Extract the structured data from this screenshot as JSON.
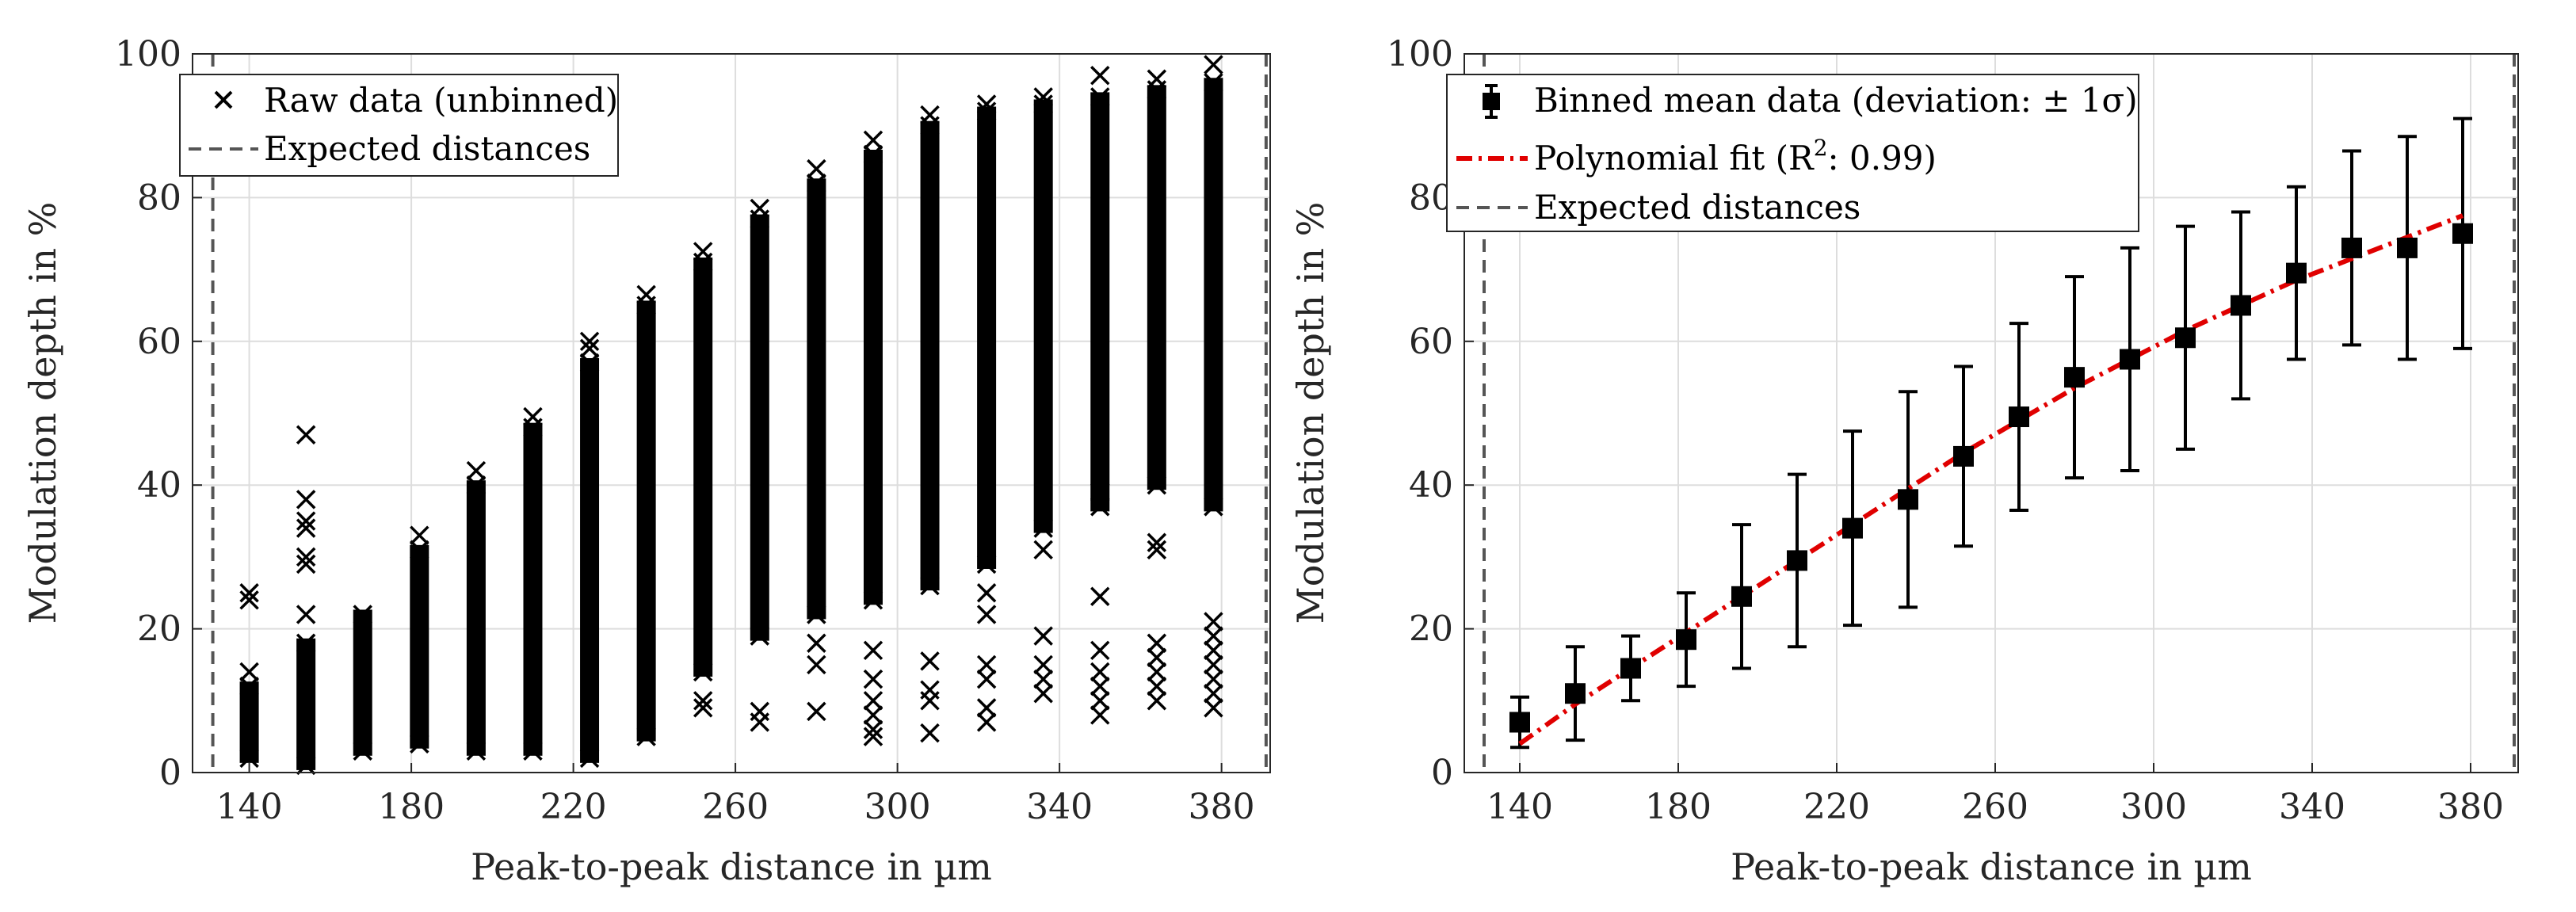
{
  "chart_data": [
    {
      "type": "scatter",
      "title": "",
      "xlabel": "Peak-to-peak distance in µm",
      "ylabel": "Modulation depth in %",
      "xlim": [
        126,
        392
      ],
      "ylim": [
        0,
        100
      ],
      "xticks": [
        140,
        180,
        220,
        260,
        300,
        340,
        380
      ],
      "yticks": [
        0,
        20,
        40,
        60,
        80,
        100
      ],
      "grid": true,
      "legend": {
        "placement": "top-left",
        "entries": [
          "Raw data (unbinned)",
          "Expected distances"
        ]
      },
      "raw_columns": [
        {
          "x": 140,
          "low": 2,
          "high": 12,
          "outliers": [
            14,
            24,
            25
          ]
        },
        {
          "x": 154,
          "low": 1,
          "high": 18,
          "outliers": [
            22,
            29,
            30,
            34,
            35,
            38,
            47
          ]
        },
        {
          "x": 168,
          "low": 3,
          "high": 22,
          "outliers": []
        },
        {
          "x": 182,
          "low": 4,
          "high": 31,
          "outliers": [
            33
          ]
        },
        {
          "x": 196,
          "low": 3,
          "high": 40,
          "outliers": [
            42
          ]
        },
        {
          "x": 210,
          "low": 3,
          "high": 48,
          "outliers": [
            49.5
          ]
        },
        {
          "x": 224,
          "low": 2,
          "high": 57,
          "outliers": [
            59,
            60
          ]
        },
        {
          "x": 238,
          "low": 5,
          "high": 65,
          "outliers": [
            66.5
          ]
        },
        {
          "x": 252,
          "low": 14,
          "high": 71,
          "outliers": [
            9,
            10,
            72.5
          ]
        },
        {
          "x": 266,
          "low": 19,
          "high": 77,
          "outliers": [
            7,
            8.5,
            78.5
          ]
        },
        {
          "x": 280,
          "low": 22,
          "high": 82,
          "outliers": [
            8.5,
            15,
            18,
            84
          ]
        },
        {
          "x": 294,
          "low": 24,
          "high": 86,
          "outliers": [
            5,
            6,
            8,
            10,
            13,
            17,
            88
          ]
        },
        {
          "x": 308,
          "low": 26,
          "high": 90,
          "outliers": [
            5.5,
            10,
            11.5,
            15.5,
            91.5
          ]
        },
        {
          "x": 322,
          "low": 29,
          "high": 92,
          "outliers": [
            7,
            9,
            13,
            15,
            22,
            25,
            93
          ]
        },
        {
          "x": 336,
          "low": 34,
          "high": 93,
          "outliers": [
            11,
            13,
            15,
            19,
            31,
            94
          ]
        },
        {
          "x": 350,
          "low": 37,
          "high": 94,
          "outliers": [
            8,
            10,
            12,
            14,
            17,
            24.5,
            39,
            97
          ]
        },
        {
          "x": 364,
          "low": 40,
          "high": 95,
          "outliers": [
            10,
            12,
            14,
            16,
            18,
            31,
            32,
            96.5
          ]
        },
        {
          "x": 378,
          "low": 37,
          "high": 96,
          "outliers": [
            9,
            11,
            13,
            15,
            17,
            19,
            21,
            98.5
          ]
        }
      ],
      "expected_distances": [
        131,
        391
      ]
    },
    {
      "type": "line",
      "title": "",
      "xlabel": "Peak-to-peak distance in µm",
      "ylabel": "Modulation depth in %",
      "xlim": [
        126,
        392
      ],
      "ylim": [
        0,
        100
      ],
      "xticks": [
        140,
        180,
        220,
        260,
        300,
        340,
        380
      ],
      "yticks": [
        0,
        20,
        40,
        60,
        80,
        100
      ],
      "grid": true,
      "legend": {
        "placement": "top-left",
        "entries": [
          "Binned mean data (deviation: ± 1σ)",
          "Polynomial fit (R²: 0.99)",
          "Expected distances"
        ]
      },
      "binned": [
        {
          "x": 140,
          "mean": 7,
          "sd": 3.5
        },
        {
          "x": 154,
          "mean": 11,
          "sd": 6.5
        },
        {
          "x": 168,
          "mean": 14.5,
          "sd": 4.5
        },
        {
          "x": 182,
          "mean": 18.5,
          "sd": 6.5
        },
        {
          "x": 196,
          "mean": 24.5,
          "sd": 10
        },
        {
          "x": 210,
          "mean": 29.5,
          "sd": 12
        },
        {
          "x": 224,
          "mean": 34,
          "sd": 13.5
        },
        {
          "x": 238,
          "mean": 38,
          "sd": 15
        },
        {
          "x": 252,
          "mean": 44,
          "sd": 12.5
        },
        {
          "x": 266,
          "mean": 49.5,
          "sd": 13
        },
        {
          "x": 280,
          "mean": 55,
          "sd": 14
        },
        {
          "x": 294,
          "mean": 57.5,
          "sd": 15.5
        },
        {
          "x": 308,
          "mean": 60.5,
          "sd": 15.5
        },
        {
          "x": 322,
          "mean": 65,
          "sd": 13
        },
        {
          "x": 336,
          "mean": 69.5,
          "sd": 12
        },
        {
          "x": 350,
          "mean": 73,
          "sd": 13.5
        },
        {
          "x": 364,
          "mean": 73,
          "sd": 15.5
        },
        {
          "x": 378,
          "mean": 75,
          "sd": 16
        }
      ],
      "fit": {
        "x": [
          140,
          154,
          168,
          182,
          196,
          210,
          224,
          238,
          252,
          266,
          280,
          294,
          308,
          322,
          336,
          350,
          364,
          378
        ],
        "y": [
          4,
          9.5,
          14.5,
          19.5,
          24.5,
          29.5,
          34.5,
          39.5,
          44.5,
          49,
          53.5,
          57.5,
          61.5,
          65,
          68.5,
          71.5,
          74.5,
          77.5
        ]
      },
      "expected_distances": [
        131,
        391
      ]
    }
  ],
  "labels": {
    "left": {
      "ylabel": "Modulation depth in %",
      "xlabel": "Peak-to-peak distance in µm",
      "legend_raw": "Raw data (unbinned)",
      "legend_expected": "Expected distances"
    },
    "right": {
      "ylabel": "Modulation depth in %",
      "xlabel": "Peak-to-peak distance in µm",
      "legend_binned": "Binned mean data (deviation: ± 1σ)",
      "legend_fit_prefix": "Polynomial fit (R",
      "legend_fit_sup": "2",
      "legend_fit_suffix": ": 0.99)",
      "legend_expected": "Expected distances"
    }
  },
  "colors": {
    "data": "#000000",
    "fit": "#e00000",
    "expected": "#555555",
    "grid": "#dddddd",
    "axis": "#262626"
  }
}
